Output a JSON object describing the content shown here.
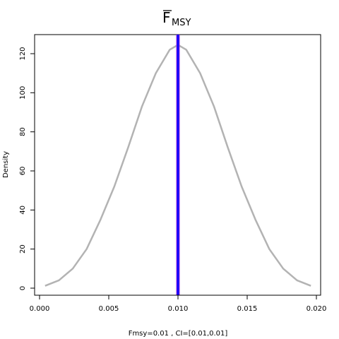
{
  "chart_data": {
    "type": "line",
    "title": {
      "main": "F",
      "subscript": "MSY",
      "overline": true
    },
    "xlabel": "Fmsy=0.01 , CI=[0.01,0.01]",
    "ylabel": "Density",
    "xlim": [
      0.0,
      0.02
    ],
    "ylim": [
      0,
      125
    ],
    "x_ticks": [
      0.0,
      0.005,
      0.01,
      0.015,
      0.02
    ],
    "x_tick_labels": [
      "0.000",
      "0.005",
      "0.010",
      "0.015",
      "0.020"
    ],
    "y_ticks": [
      0,
      20,
      40,
      60,
      80,
      100,
      120
    ],
    "y_tick_labels": [
      "0",
      "20",
      "40",
      "60",
      "80",
      "100",
      "120"
    ],
    "grid": false,
    "series": [
      {
        "kind": "density-curve",
        "color": "#b3b3b3",
        "x": [
          0.0004,
          0.0014,
          0.0024,
          0.0034,
          0.0044,
          0.0054,
          0.0064,
          0.0074,
          0.0084,
          0.0094,
          0.01,
          0.0106,
          0.0116,
          0.0126,
          0.0136,
          0.0146,
          0.0156,
          0.0166,
          0.0176,
          0.0186,
          0.0196
        ],
        "y": [
          1.2,
          4,
          10,
          20,
          35,
          52,
          72,
          93,
          110,
          122,
          124.5,
          122,
          110,
          93,
          72,
          52,
          35,
          20,
          10,
          4,
          1.2
        ]
      }
    ],
    "vertical_lines": [
      {
        "name": "estimate",
        "x": 0.01,
        "color": "#0000ff"
      },
      {
        "name": "ci-lower",
        "x": 0.01,
        "color": "#8a2be2"
      },
      {
        "name": "ci-upper",
        "x": 0.01,
        "color": "#8a2be2"
      }
    ]
  }
}
